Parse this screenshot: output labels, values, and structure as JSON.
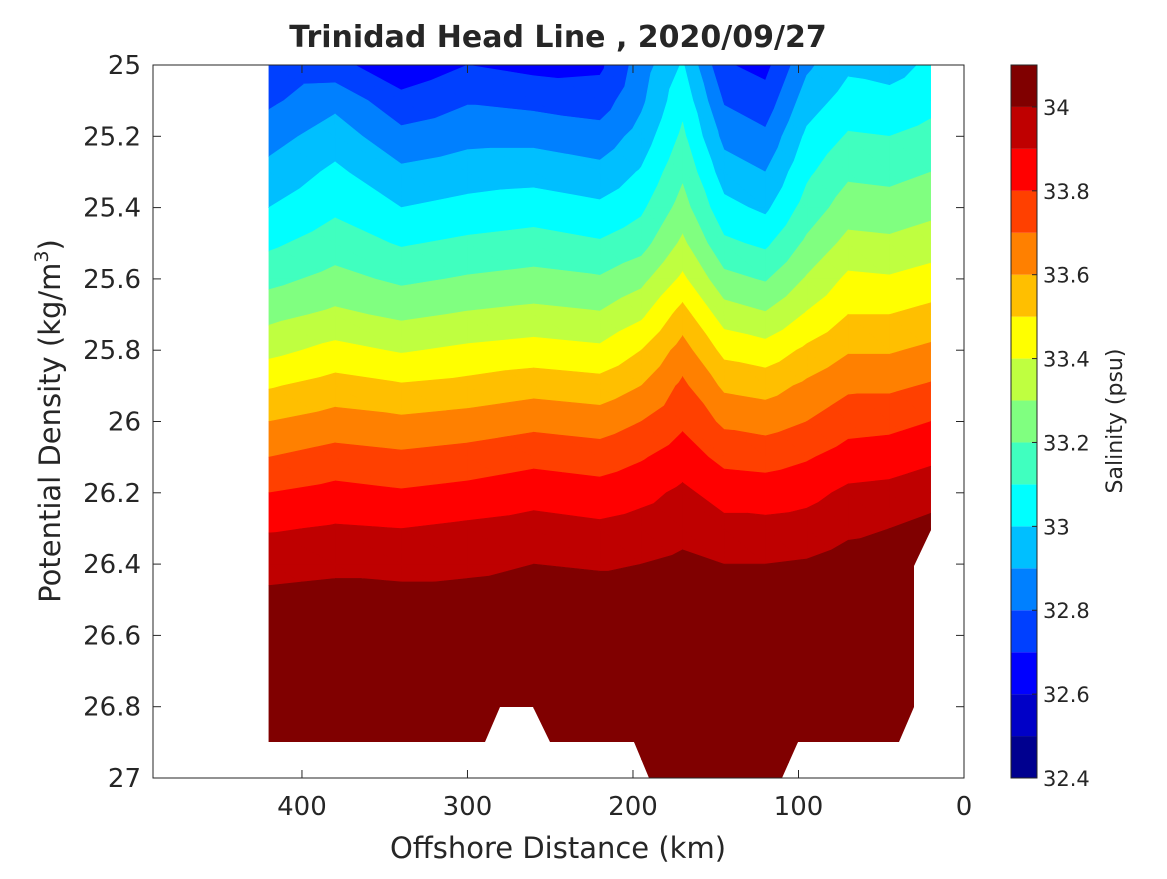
{
  "chart_data": {
    "type": "heatmap",
    "subtype": "filled-contour",
    "title": "Trinidad Head Line , 2020/09/27",
    "xlabel": "Offshore Distance (km)",
    "ylabel": "Potential Density (kg/m",
    "ylabel_superscript": "3",
    "ylabel_suffix": ")",
    "colorbar_label": "Salinity (psu)",
    "x_axis_reversed": true,
    "y_axis_reversed": true,
    "xlim": [
      490,
      0
    ],
    "ylim": [
      25,
      27
    ],
    "x_ticks": [
      400,
      300,
      200,
      100,
      0
    ],
    "x_tick_labels": [
      "400",
      "300",
      "200",
      "100",
      "0"
    ],
    "y_ticks": [
      25,
      25.2,
      25.4,
      25.6,
      25.8,
      26,
      26.2,
      26.4,
      26.6,
      26.8,
      27
    ],
    "y_tick_labels": [
      "25",
      "25.2",
      "25.4",
      "25.6",
      "25.8",
      "26",
      "26.2",
      "26.4",
      "26.6",
      "26.8",
      "27"
    ],
    "colorbar_range": [
      32.4,
      34.1
    ],
    "colorbar_ticks": [
      32.4,
      32.6,
      32.8,
      33,
      33.2,
      33.4,
      33.6,
      33.8,
      34
    ],
    "colorbar_tick_labels": [
      "32.4",
      "32.6",
      "32.8",
      "33",
      "33.2",
      "33.4",
      "33.6",
      "33.8",
      "34"
    ],
    "colormap": "jet",
    "contour_levels": [
      32.4,
      32.5,
      32.6,
      32.7,
      32.8,
      32.9,
      33.0,
      33.1,
      33.2,
      33.3,
      33.4,
      33.5,
      33.6,
      33.7,
      33.8,
      33.9,
      34.0,
      34.1
    ],
    "band_colors": [
      "#00008f",
      "#0000c7",
      "#0000ff",
      "#0040ff",
      "#0080ff",
      "#00bfff",
      "#00ffff",
      "#40ffbf",
      "#80ff80",
      "#bfff40",
      "#ffff00",
      "#ffbf00",
      "#ff8000",
      "#ff4000",
      "#ff0000",
      "#bf0000",
      "#800000"
    ],
    "grid": false,
    "x": [
      420,
      380,
      340,
      300,
      260,
      220,
      195,
      170,
      145,
      120,
      95,
      70,
      45,
      20
    ],
    "y": [
      25.0,
      25.1,
      25.2,
      25.3,
      25.4,
      25.5,
      25.6,
      25.7,
      25.8,
      25.9,
      26.0,
      26.1,
      26.2,
      26.3,
      26.4,
      26.5,
      26.6,
      26.7,
      26.8,
      26.9,
      27.0
    ],
    "salinity": [
      [
        32.72,
        32.73,
        32.63,
        32.7,
        32.67,
        32.68,
        32.85,
        33.01,
        32.71,
        32.67,
        32.88,
        32.98,
        32.96,
        33.02
      ],
      [
        32.78,
        32.87,
        32.73,
        32.79,
        32.77,
        32.75,
        32.88,
        33.07,
        32.79,
        32.74,
        32.95,
        33.04,
        33.03,
        33.07
      ],
      [
        32.86,
        32.95,
        32.83,
        32.87,
        32.87,
        32.84,
        32.94,
        33.12,
        32.87,
        32.82,
        33.02,
        33.11,
        33.1,
        33.13
      ],
      [
        32.93,
        33.02,
        32.92,
        32.95,
        32.96,
        32.93,
        33.01,
        33.18,
        32.95,
        32.9,
        33.08,
        33.18,
        33.17,
        33.2
      ],
      [
        33.0,
        33.08,
        33.0,
        33.03,
        33.05,
        33.02,
        33.08,
        33.24,
        33.03,
        32.98,
        33.14,
        33.25,
        33.24,
        33.27
      ],
      [
        33.08,
        33.15,
        33.09,
        33.12,
        33.14,
        33.11,
        33.16,
        33.32,
        33.12,
        33.08,
        33.22,
        33.33,
        33.32,
        33.35
      ],
      [
        33.17,
        33.23,
        33.18,
        33.21,
        33.23,
        33.21,
        33.27,
        33.42,
        33.23,
        33.19,
        33.31,
        33.42,
        33.41,
        33.44
      ],
      [
        33.27,
        33.32,
        33.28,
        33.31,
        33.33,
        33.31,
        33.38,
        33.54,
        33.35,
        33.31,
        33.41,
        33.5,
        33.5,
        33.53
      ],
      [
        33.37,
        33.43,
        33.39,
        33.42,
        33.44,
        33.42,
        33.5,
        33.64,
        33.47,
        33.44,
        33.52,
        33.59,
        33.59,
        33.62
      ],
      [
        33.49,
        33.54,
        33.51,
        33.53,
        33.56,
        33.54,
        33.6,
        33.72,
        33.58,
        33.56,
        33.62,
        33.68,
        33.68,
        33.71
      ],
      [
        33.6,
        33.64,
        33.62,
        33.64,
        33.67,
        33.65,
        33.7,
        33.78,
        33.68,
        33.66,
        33.7,
        33.76,
        33.77,
        33.8
      ],
      [
        33.7,
        33.74,
        33.72,
        33.74,
        33.77,
        33.75,
        33.79,
        33.85,
        33.77,
        33.76,
        33.79,
        33.84,
        33.85,
        33.88
      ],
      [
        33.8,
        33.83,
        33.81,
        33.83,
        33.86,
        33.84,
        33.87,
        33.92,
        33.86,
        33.85,
        33.87,
        33.92,
        33.93,
        33.96
      ],
      [
        33.89,
        33.91,
        33.9,
        33.92,
        33.94,
        33.92,
        33.94,
        33.97,
        33.93,
        33.93,
        33.94,
        33.98,
        34.0,
        34.03
      ],
      [
        33.97,
        33.98,
        33.97,
        33.98,
        34.0,
        33.99,
        34.0,
        34.02,
        34.0,
        34.0,
        34.01,
        34.04,
        34.05,
        34.07
      ],
      [
        34.02,
        34.03,
        34.03,
        34.03,
        34.04,
        34.04,
        34.04,
        34.05,
        34.04,
        34.04,
        34.05,
        34.08,
        34.08,
        34.08
      ],
      [
        34.05,
        34.06,
        34.07,
        34.07,
        34.07,
        34.07,
        34.07,
        34.08,
        34.07,
        34.07,
        34.08,
        34.1,
        34.1,
        34.1
      ],
      [
        34.08,
        34.09,
        34.09,
        34.09,
        34.09,
        34.09,
        34.09,
        34.09,
        34.09,
        34.09,
        34.09,
        34.1,
        34.1,
        34.1
      ],
      [
        34.09,
        34.1,
        34.1,
        34.1,
        34.1,
        34.1,
        34.1,
        34.1,
        34.1,
        34.1,
        34.1,
        34.1,
        34.1,
        34.1
      ],
      [
        34.09,
        34.1,
        34.1,
        34.1,
        34.1,
        34.1,
        34.11,
        34.12,
        34.12,
        34.11,
        34.1,
        34.1,
        34.1,
        34.1
      ],
      [
        34.1,
        34.1,
        34.1,
        34.1,
        34.1,
        34.1,
        34.13,
        34.14,
        34.14,
        34.13,
        34.1,
        34.1,
        34.1,
        34.1
      ]
    ]
  }
}
